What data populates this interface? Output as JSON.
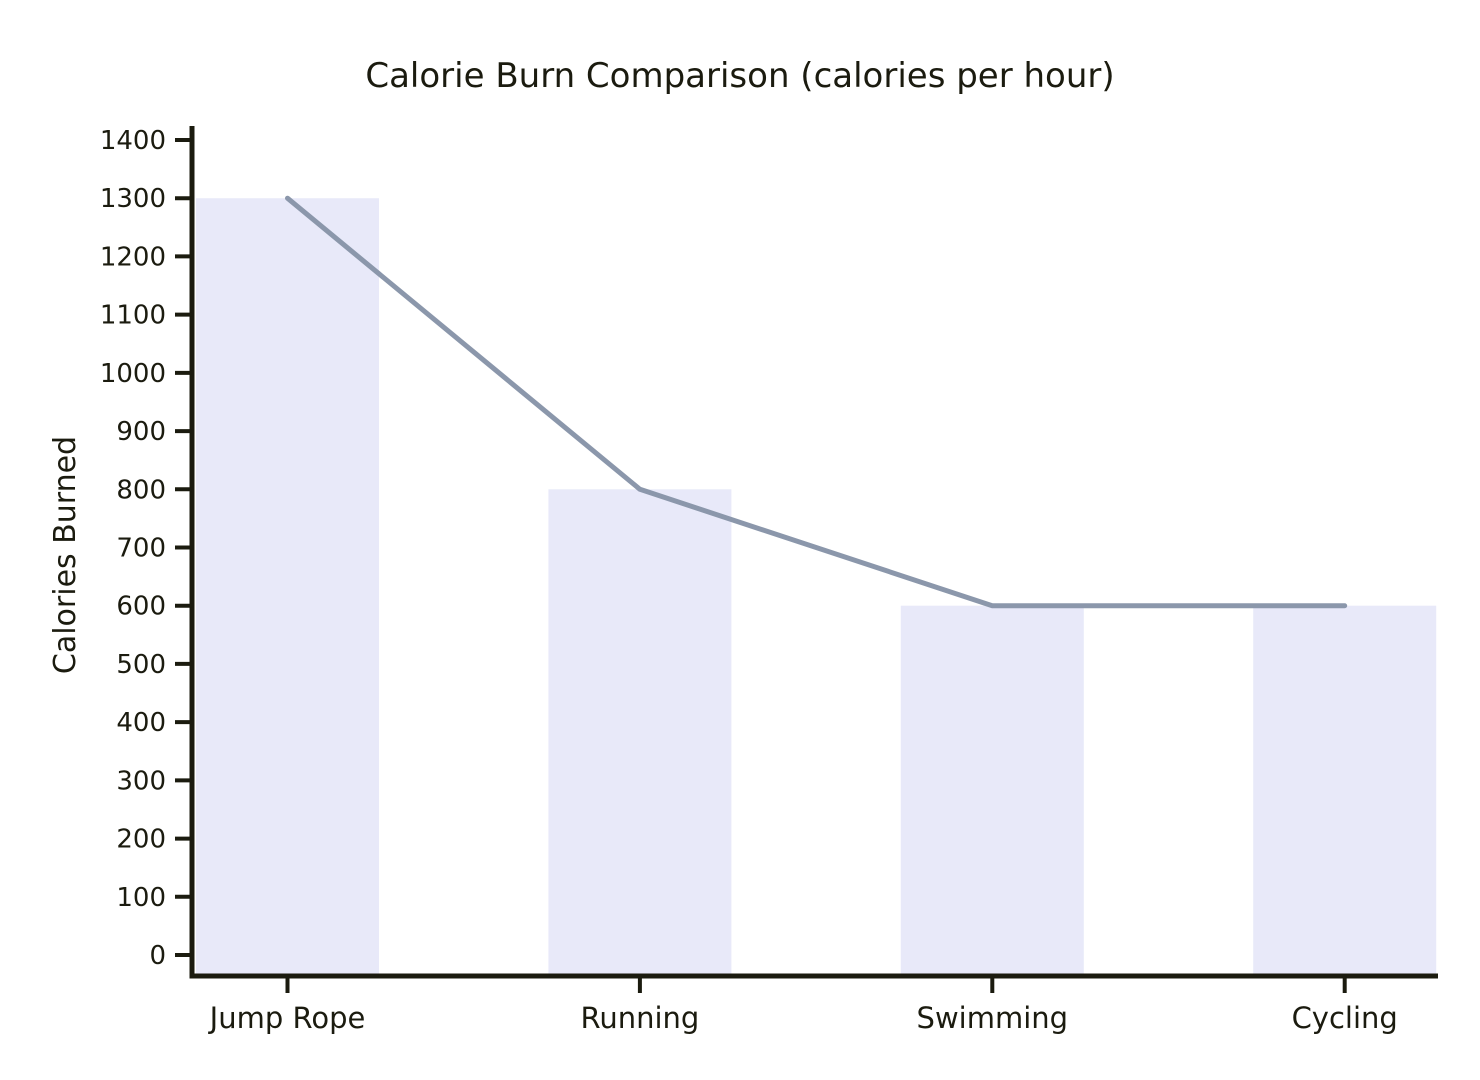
{
  "chart_data": {
    "type": "bar",
    "title": "Calorie Burn Comparison (calories per hour)",
    "xlabel": "",
    "ylabel": "Calories Burned",
    "categories": [
      "Jump Rope",
      "Running",
      "Swimming",
      "Cycling"
    ],
    "series": [
      {
        "name": "calories-per-hour-bars",
        "type": "bar",
        "values": [
          1300,
          800,
          600,
          600
        ]
      },
      {
        "name": "calories-per-hour-line",
        "type": "line",
        "values": [
          1300,
          800,
          600,
          600
        ]
      }
    ],
    "ylim": [
      0,
      1400
    ],
    "yticks": [
      0,
      100,
      200,
      300,
      400,
      500,
      600,
      700,
      800,
      900,
      1000,
      1100,
      1200,
      1300,
      1400
    ],
    "grid": false,
    "legend": null,
    "colors": {
      "bar_fill": "#e8e9f9",
      "line": "#8b97ab",
      "axis": "#1b1b0f",
      "text": "#1b1b0f",
      "background": "#ffffff"
    }
  }
}
